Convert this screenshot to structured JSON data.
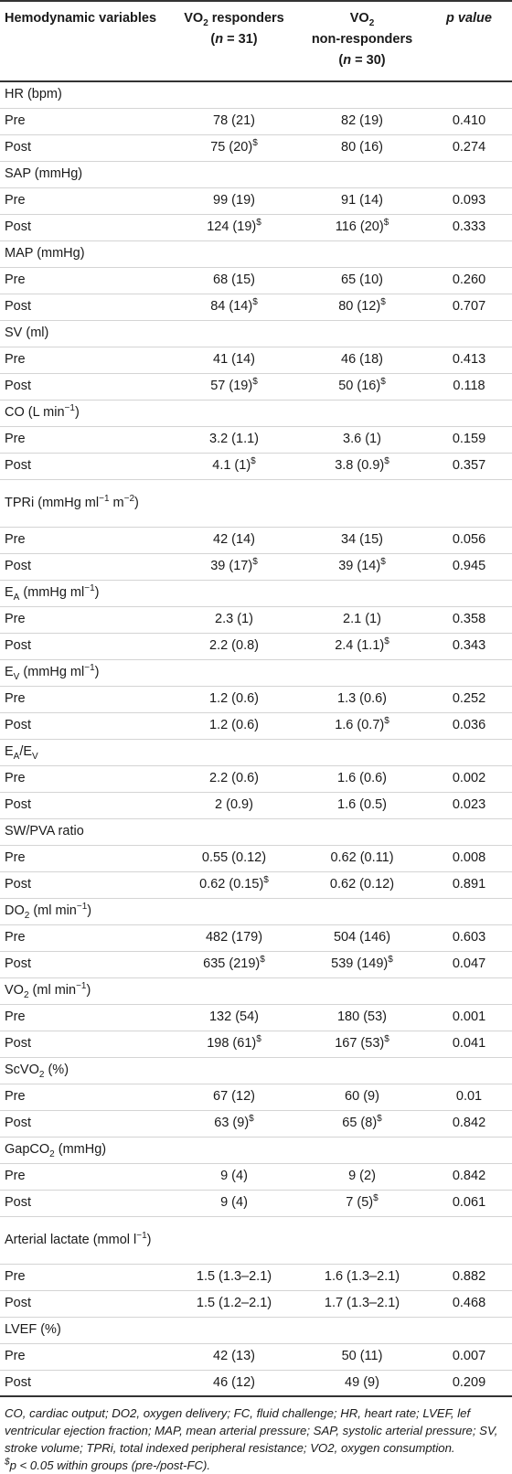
{
  "table": {
    "headers": [
      "Hemodynamic variables",
      {
        "vo": "VO",
        "sub": "2",
        "title": " responders",
        "n": "(n = 31)"
      },
      {
        "vo": "VO",
        "sub": "2",
        "title": "non-responders",
        "n": "(n = 30)"
      },
      "p value"
    ],
    "groups": [
      {
        "label": [
          [
            "HR (bpm)",
            ""
          ]
        ],
        "rows": [
          {
            "phase": "Pre",
            "resp": "78 (21)",
            "resp_sig": false,
            "nonresp": "82 (19)",
            "nonresp_sig": false,
            "p": "0.410"
          },
          {
            "phase": "Post",
            "resp": "75 (20)",
            "resp_sig": true,
            "nonresp": "80 (16)",
            "nonresp_sig": false,
            "p": "0.274"
          }
        ]
      },
      {
        "label": [
          [
            "SAP (mmHg)",
            ""
          ]
        ],
        "rows": [
          {
            "phase": "Pre",
            "resp": "99 (19)",
            "resp_sig": false,
            "nonresp": "91 (14)",
            "nonresp_sig": false,
            "p": "0.093"
          },
          {
            "phase": "Post",
            "resp": "124 (19)",
            "resp_sig": true,
            "nonresp": "116 (20)",
            "nonresp_sig": true,
            "p": "0.333"
          }
        ]
      },
      {
        "label": [
          [
            "MAP (mmHg)",
            ""
          ]
        ],
        "rows": [
          {
            "phase": "Pre",
            "resp": "68 (15)",
            "resp_sig": false,
            "nonresp": "65 (10)",
            "nonresp_sig": false,
            "p": "0.260"
          },
          {
            "phase": "Post",
            "resp": "84 (14)",
            "resp_sig": true,
            "nonresp": "80 (12)",
            "nonresp_sig": true,
            "p": "0.707"
          }
        ]
      },
      {
        "label": [
          [
            "SV (ml)",
            ""
          ]
        ],
        "rows": [
          {
            "phase": "Pre",
            "resp": "41 (14)",
            "resp_sig": false,
            "nonresp": "46 (18)",
            "nonresp_sig": false,
            "p": "0.413"
          },
          {
            "phase": "Post",
            "resp": "57 (19)",
            "resp_sig": true,
            "nonresp": "50 (16)",
            "nonresp_sig": true,
            "p": "0.118"
          }
        ]
      },
      {
        "label": [
          [
            "CO (L min",
            ""
          ],
          [
            "−1",
            "sup"
          ],
          [
            ")",
            ""
          ]
        ],
        "rows": [
          {
            "phase": "Pre",
            "resp": "3.2 (1.1)",
            "resp_sig": false,
            "nonresp": "3.6 (1)",
            "nonresp_sig": false,
            "p": "0.159"
          },
          {
            "phase": "Post",
            "resp": "4.1 (1)",
            "resp_sig": true,
            "nonresp": "3.8 (0.9)",
            "nonresp_sig": true,
            "p": "0.357"
          }
        ]
      },
      {
        "label": [
          [
            "TPRi (mmHg ml",
            ""
          ],
          [
            "−1",
            "sup"
          ],
          [
            " m",
            ""
          ],
          [
            "−2",
            "sup"
          ],
          [
            ")",
            ""
          ]
        ],
        "tall": true,
        "rows": [
          {
            "phase": "Pre",
            "resp": "42 (14)",
            "resp_sig": false,
            "nonresp": "34 (15)",
            "nonresp_sig": false,
            "p": "0.056"
          },
          {
            "phase": "Post",
            "resp": "39 (17)",
            "resp_sig": true,
            "nonresp": "39 (14)",
            "nonresp_sig": true,
            "p": "0.945"
          }
        ]
      },
      {
        "label": [
          [
            "E",
            ""
          ],
          [
            "A",
            "sub"
          ],
          [
            " (mmHg ml",
            ""
          ],
          [
            "−1",
            "sup"
          ],
          [
            ")",
            ""
          ]
        ],
        "rows": [
          {
            "phase": "Pre",
            "resp": "2.3 (1)",
            "resp_sig": false,
            "nonresp": "2.1 (1)",
            "nonresp_sig": false,
            "p": "0.358"
          },
          {
            "phase": "Post",
            "resp": "2.2 (0.8)",
            "resp_sig": false,
            "nonresp": "2.4 (1.1)",
            "nonresp_sig": true,
            "p": "0.343"
          }
        ]
      },
      {
        "label": [
          [
            "E",
            ""
          ],
          [
            "V",
            "sub"
          ],
          [
            " (mmHg ml",
            ""
          ],
          [
            "−1",
            "sup"
          ],
          [
            ")",
            ""
          ]
        ],
        "rows": [
          {
            "phase": "Pre",
            "resp": "1.2 (0.6)",
            "resp_sig": false,
            "nonresp": "1.3 (0.6)",
            "nonresp_sig": false,
            "p": "0.252"
          },
          {
            "phase": "Post",
            "resp": "1.2 (0.6)",
            "resp_sig": false,
            "nonresp": "1.6 (0.7)",
            "nonresp_sig": true,
            "p": "0.036"
          }
        ]
      },
      {
        "label": [
          [
            "E",
            ""
          ],
          [
            "A",
            "sub"
          ],
          [
            "/E",
            ""
          ],
          [
            "V",
            "sub"
          ]
        ],
        "rows": [
          {
            "phase": "Pre",
            "resp": "2.2 (0.6)",
            "resp_sig": false,
            "nonresp": "1.6 (0.6)",
            "nonresp_sig": false,
            "p": "0.002"
          },
          {
            "phase": "Post",
            "resp": "2 (0.9)",
            "resp_sig": false,
            "nonresp": "1.6 (0.5)",
            "nonresp_sig": false,
            "p": "0.023"
          }
        ]
      },
      {
        "label": [
          [
            "SW/PVA ratio",
            ""
          ]
        ],
        "rows": [
          {
            "phase": "Pre",
            "resp": "0.55 (0.12)",
            "resp_sig": false,
            "nonresp": "0.62 (0.11)",
            "nonresp_sig": false,
            "p": "0.008"
          },
          {
            "phase": "Post",
            "resp": "0.62 (0.15)",
            "resp_sig": true,
            "nonresp": "0.62 (0.12)",
            "nonresp_sig": false,
            "p": "0.891"
          }
        ]
      },
      {
        "label": [
          [
            "DO",
            ""
          ],
          [
            "2",
            "sub"
          ],
          [
            " (ml min",
            ""
          ],
          [
            "−1",
            "sup"
          ],
          [
            ")",
            ""
          ]
        ],
        "rows": [
          {
            "phase": "Pre",
            "resp": "482 (179)",
            "resp_sig": false,
            "nonresp": "504 (146)",
            "nonresp_sig": false,
            "p": "0.603"
          },
          {
            "phase": "Post",
            "resp": "635 (219)",
            "resp_sig": true,
            "nonresp": "539 (149)",
            "nonresp_sig": true,
            "p": "0.047"
          }
        ]
      },
      {
        "label": [
          [
            "VO",
            ""
          ],
          [
            "2",
            "sub"
          ],
          [
            " (ml min",
            ""
          ],
          [
            "−1",
            "sup"
          ],
          [
            ")",
            ""
          ]
        ],
        "rows": [
          {
            "phase": "Pre",
            "resp": "132 (54)",
            "resp_sig": false,
            "nonresp": "180 (53)",
            "nonresp_sig": false,
            "p": "0.001"
          },
          {
            "phase": "Post",
            "resp": "198 (61)",
            "resp_sig": true,
            "nonresp": "167 (53)",
            "nonresp_sig": true,
            "p": "0.041"
          }
        ]
      },
      {
        "label": [
          [
            "ScVO",
            ""
          ],
          [
            "2",
            "sub"
          ],
          [
            " (%)",
            ""
          ]
        ],
        "rows": [
          {
            "phase": "Pre",
            "resp": "67 (12)",
            "resp_sig": false,
            "nonresp": "60 (9)",
            "nonresp_sig": false,
            "p": "0.01"
          },
          {
            "phase": "Post",
            "resp": "63 (9)",
            "resp_sig": true,
            "nonresp": "65 (8)",
            "nonresp_sig": true,
            "p": "0.842"
          }
        ]
      },
      {
        "label": [
          [
            "GapCO",
            ""
          ],
          [
            "2",
            "sub"
          ],
          [
            " (mmHg)",
            ""
          ]
        ],
        "rows": [
          {
            "phase": "Pre",
            "resp": "9 (4)",
            "resp_sig": false,
            "nonresp": "9 (2)",
            "nonresp_sig": false,
            "p": "0.842"
          },
          {
            "phase": "Post",
            "resp": "9 (4)",
            "resp_sig": false,
            "nonresp": "7 (5)",
            "nonresp_sig": true,
            "p": "0.061"
          }
        ]
      },
      {
        "label": [
          [
            "Arterial lactate (mmol l",
            ""
          ],
          [
            "−1",
            "sup"
          ],
          [
            ")",
            ""
          ]
        ],
        "tall": true,
        "rows": [
          {
            "phase": "Pre",
            "resp": "1.5 (1.3–2.1)",
            "resp_sig": false,
            "nonresp": "1.6 (1.3–2.1)",
            "nonresp_sig": false,
            "p": "0.882"
          },
          {
            "phase": "Post",
            "resp": "1.5 (1.2–2.1)",
            "resp_sig": false,
            "nonresp": "1.7 (1.3–2.1)",
            "nonresp_sig": false,
            "p": "0.468"
          }
        ]
      },
      {
        "label": [
          [
            "LVEF (%)",
            ""
          ]
        ],
        "rows": [
          {
            "phase": "Pre",
            "resp": "42 (13)",
            "resp_sig": false,
            "nonresp": "50 (11)",
            "nonresp_sig": false,
            "p": "0.007"
          },
          {
            "phase": "Post",
            "resp": "46 (12)",
            "resp_sig": false,
            "nonresp": "49 (9)",
            "nonresp_sig": false,
            "p": "0.209"
          }
        ]
      }
    ]
  },
  "sig_marker": "$",
  "footnote": {
    "abbreviations": "CO, cardiac output; DO2, oxygen delivery; FC, fluid challenge; HR, heart rate; LVEF, lef ventricular ejection fraction; MAP, mean arterial pressure; SAP, systolic arterial pressure; SV, stroke volume; TPRi, total indexed peripheral resistance; VO2, oxygen consumption.",
    "symbol": "$",
    "significance": "p < 0.05 within groups (pre-/post-FC)."
  }
}
